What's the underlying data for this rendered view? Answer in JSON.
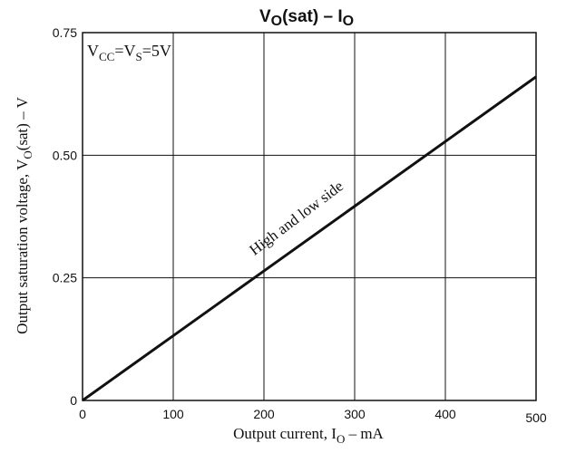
{
  "chart_data": {
    "type": "line",
    "title": {
      "main": "V",
      "sub1": "O",
      "mid": "(sat)  –  I",
      "sub2": "O"
    },
    "xlabel": {
      "main": "Output current, I",
      "sub": "O",
      "tail": "  –  mA"
    },
    "ylabel": {
      "main": "Output saturation voltage, V",
      "sub": "O",
      "tail": "(sat)  –  V"
    },
    "condition": {
      "a": "V",
      "a_sub": "CC",
      "b": "=V",
      "b_sub": "S",
      "c": "=5V"
    },
    "annotation": "High and low side",
    "xlim": [
      0,
      500
    ],
    "ylim": [
      0,
      0.75
    ],
    "x_ticks": [
      {
        "value": 0,
        "label": "0"
      },
      {
        "value": 100,
        "label": "100"
      },
      {
        "value": 200,
        "label": "200"
      },
      {
        "value": 300,
        "label": "300"
      },
      {
        "value": 400,
        "label": "400"
      },
      {
        "value": 500,
        "label": "500"
      }
    ],
    "y_ticks": [
      {
        "value": 0,
        "label": "0"
      },
      {
        "value": 0.25,
        "label": "0.25"
      },
      {
        "value": 0.5,
        "label": "0.50"
      },
      {
        "value": 0.75,
        "label": "0.75"
      }
    ],
    "grid": true,
    "series": [
      {
        "x": [
          0,
          100,
          200,
          300,
          400,
          500
        ],
        "y": [
          0,
          0.132,
          0.264,
          0.396,
          0.528,
          0.66
        ]
      }
    ]
  }
}
